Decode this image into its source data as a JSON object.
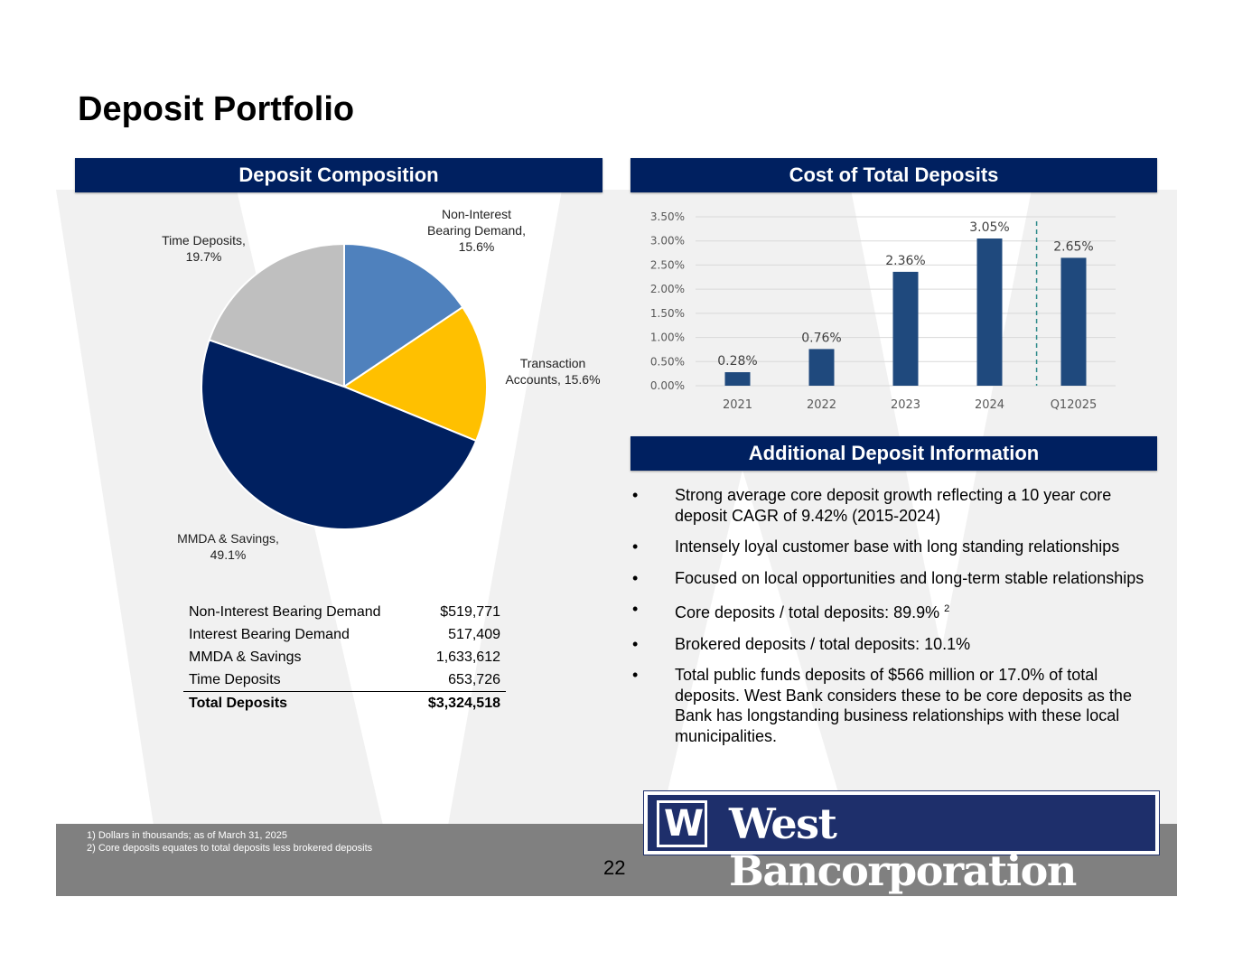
{
  "title": "Deposit Portfolio",
  "sections": {
    "composition": "Deposit Composition",
    "cost": "Cost of Total Deposits",
    "additional": "Additional Deposit Information"
  },
  "pie": {
    "slices": [
      {
        "label": "Non-Interest Bearing Demand, 15.6%",
        "value": 15.6,
        "color": "#4f81bd"
      },
      {
        "label": "Transaction Accounts, 15.6%",
        "value": 15.6,
        "color": "#ffc000"
      },
      {
        "label": "MMDA & Savings, 49.1%",
        "value": 49.1,
        "color": "#002060"
      },
      {
        "label": "Time Deposits, 19.7%",
        "value": 19.7,
        "color": "#bfbfbf"
      }
    ],
    "label_lines": {
      "nib": [
        "Non-Interest",
        "Bearing Demand,",
        "15.6%"
      ],
      "trans": [
        "Transaction",
        "Accounts, 15.6%"
      ],
      "mmda": [
        "MMDA & Savings,",
        "49.1%"
      ],
      "time": [
        "Time Deposits,",
        "19.7%"
      ]
    }
  },
  "deposit_table": {
    "rows": [
      {
        "label": "Non-Interest Bearing Demand",
        "value": "$519,771"
      },
      {
        "label": "Interest Bearing Demand",
        "value": "517,409"
      },
      {
        "label": "MMDA & Savings",
        "value": "1,633,612"
      },
      {
        "label": "Time Deposits",
        "value": "653,726"
      }
    ],
    "total": {
      "label": "Total Deposits",
      "value": "$3,324,518"
    }
  },
  "chart_data": {
    "type": "bar",
    "categories": [
      "2021",
      "2022",
      "2023",
      "2024",
      "Q12025"
    ],
    "values": [
      0.28,
      0.76,
      2.36,
      3.05,
      2.65
    ],
    "data_labels": [
      "0.28%",
      "0.76%",
      "2.36%",
      "3.05%",
      "2.65%"
    ],
    "yticks": [
      "0.00%",
      "0.50%",
      "1.00%",
      "1.50%",
      "2.00%",
      "2.50%",
      "3.00%",
      "3.50%"
    ],
    "ylim": [
      0,
      3.5
    ],
    "grid": true,
    "bar_color": "#1f497d",
    "divider": "dashed line between 2024 and Q12025",
    "title": "",
    "xlabel": "",
    "ylabel": ""
  },
  "bullets": [
    {
      "text": "Strong average core deposit growth reflecting a 10 year core deposit CAGR of 9.42% (2015-2024)"
    },
    {
      "text": "Intensely loyal customer base with long standing relationships"
    },
    {
      "text": "Focused on local opportunities and long-term stable relationships"
    },
    {
      "text": "Core deposits / total deposits:  89.9% ",
      "sup": "2"
    },
    {
      "text": "Brokered deposits / total deposits:  10.1%"
    },
    {
      "text": "Total public funds deposits of $566 million or 17.0% of total deposits. West Bank considers these to be core deposits as the Bank has longstanding business relationships with these local municipalities."
    }
  ],
  "bullet_char": "•",
  "footnotes": [
    "1)  Dollars in thousands; as of March 31, 2025",
    "2)  Core deposits equates to total deposits less brokered deposits"
  ],
  "page_number": "22",
  "logo": {
    "mark": "W",
    "name": "West Bancorporation"
  }
}
